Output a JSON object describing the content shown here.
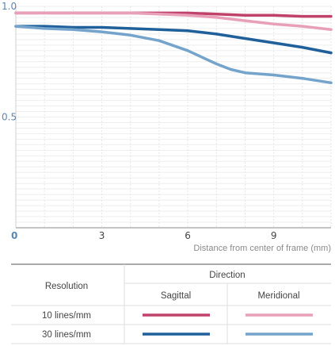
{
  "chart_data": {
    "type": "line",
    "title": "",
    "xlabel": "Distance from center of frame (mm)",
    "ylabel": "",
    "xlim": [
      0,
      11
    ],
    "ylim": [
      0,
      1.0
    ],
    "x_ticks": [
      0,
      3,
      6,
      9
    ],
    "x_tick_labels": [
      "0",
      "3",
      "6",
      "9"
    ],
    "y_ticks": [
      0.5,
      1.0
    ],
    "y_tick_labels": [
      "0.5",
      "1.0"
    ],
    "grid": true,
    "series": [
      {
        "name": "10 lines/mm Sagittal",
        "color": "#c0426a",
        "x": [
          0,
          1,
          2,
          3,
          4,
          5,
          6,
          7,
          8,
          9,
          10,
          11
        ],
        "y": [
          0.97,
          0.97,
          0.97,
          0.97,
          0.97,
          0.97,
          0.97,
          0.965,
          0.96,
          0.96,
          0.955,
          0.955
        ]
      },
      {
        "name": "10 lines/mm Meridional",
        "color": "#e8a0b8",
        "x": [
          0,
          1,
          2,
          3,
          4,
          5,
          6,
          7,
          8,
          9,
          10,
          11
        ],
        "y": [
          0.97,
          0.97,
          0.97,
          0.97,
          0.97,
          0.965,
          0.96,
          0.95,
          0.935,
          0.92,
          0.91,
          0.895
        ]
      },
      {
        "name": "30 lines/mm Sagittal",
        "color": "#1f5f9a",
        "x": [
          0,
          1,
          2,
          3,
          4,
          5,
          6,
          7,
          8,
          9,
          10,
          11
        ],
        "y": [
          0.91,
          0.91,
          0.905,
          0.905,
          0.9,
          0.895,
          0.89,
          0.875,
          0.855,
          0.835,
          0.815,
          0.79
        ]
      },
      {
        "name": "30 lines/mm Meridional",
        "color": "#74a4cc",
        "x": [
          0,
          1,
          2,
          3,
          4,
          5,
          6,
          6.5,
          7,
          7.5,
          8,
          9,
          10,
          11
        ],
        "y": [
          0.91,
          0.9,
          0.895,
          0.885,
          0.87,
          0.845,
          0.8,
          0.77,
          0.74,
          0.715,
          0.7,
          0.69,
          0.675,
          0.655
        ]
      }
    ]
  },
  "legend": {
    "direction_header": "Direction",
    "resolution_header": "Resolution",
    "sagittal_label": "Sagittal",
    "meridional_label": "Meridional",
    "rows": [
      {
        "label": "10 lines/mm",
        "sagittal_color": "#c0426a",
        "meridional_color": "#e8a0b8"
      },
      {
        "label": "30 lines/mm",
        "sagittal_color": "#1f5f9a",
        "meridional_color": "#74a4cc"
      }
    ]
  }
}
